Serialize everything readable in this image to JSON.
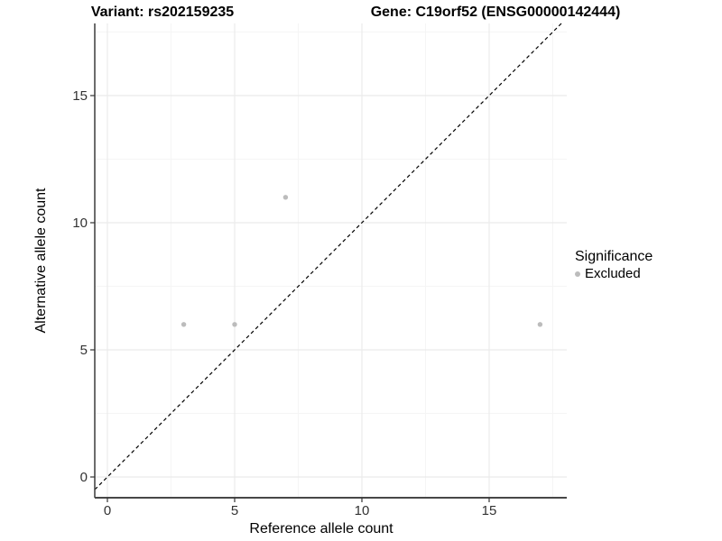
{
  "titles": {
    "variant": "Variant: rs202159235",
    "gene": "Gene: C19orf52 (ENSG00000142444)"
  },
  "axes": {
    "x": {
      "label": "Reference allele count",
      "ticks": [
        0,
        5,
        10,
        15
      ],
      "minor_ticks": [
        2.5,
        7.5,
        12.5,
        17.5
      ]
    },
    "y": {
      "label": "Alternative allele count",
      "ticks": [
        0,
        5,
        10,
        15
      ],
      "minor_ticks": [
        2.5,
        7.5,
        12.5,
        17.5
      ]
    }
  },
  "legend": {
    "title": "Significance",
    "items": [
      {
        "label": "Excluded",
        "color": "#bcbcbc"
      }
    ]
  },
  "chart_data": {
    "type": "scatter",
    "title": "Variant: rs202159235 | Gene: C19orf52 (ENSG00000142444)",
    "xlabel": "Reference allele count",
    "ylabel": "Alternative allele count",
    "xlim": [
      -0.9,
      18.1
    ],
    "ylim": [
      -0.85,
      17.85
    ],
    "grid": true,
    "legend_position": "right",
    "series": [
      {
        "name": "Excluded",
        "color": "#bcbcbc",
        "points": [
          [
            3,
            6
          ],
          [
            5,
            6
          ],
          [
            7,
            11
          ],
          [
            17,
            6
          ]
        ]
      }
    ],
    "identity_line": {
      "style": "dashed",
      "equation": "y = x",
      "color": "#000000"
    }
  },
  "colors": {
    "background": "#ffffff",
    "grid_major": "#ebebeb",
    "grid_minor": "#f5f5f5",
    "axis_line": "#474747",
    "tick_mark": "#333333",
    "tick_label": "#333333",
    "point": "#bcbcbc",
    "text": "#000000"
  }
}
